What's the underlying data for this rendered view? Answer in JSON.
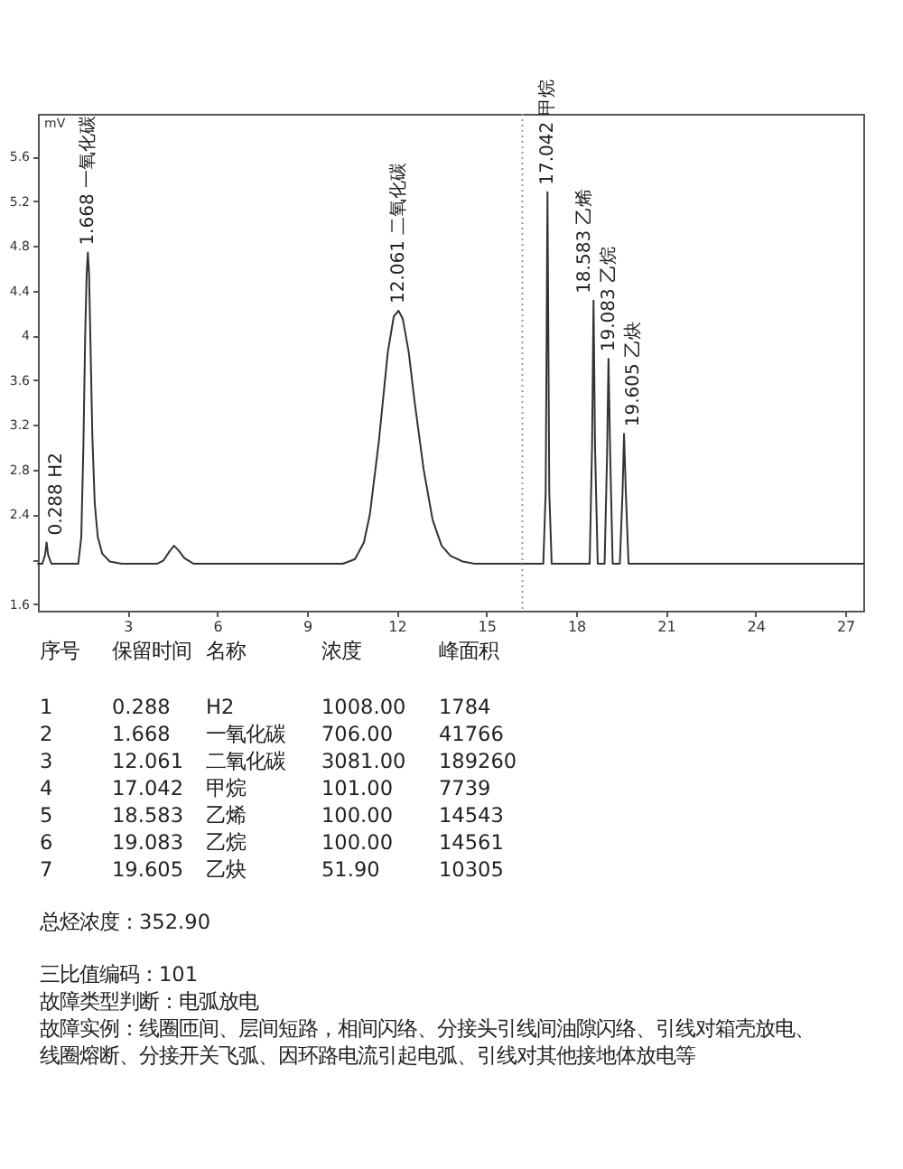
{
  "chart_data": {
    "type": "line",
    "ylabel": "mV",
    "x": [
      0,
      0.15,
      0.24,
      0.29,
      0.34,
      0.45,
      1.35,
      1.45,
      1.52,
      1.58,
      1.63,
      1.67,
      1.71,
      1.76,
      1.82,
      1.9,
      2.0,
      2.15,
      2.4,
      2.8,
      4.0,
      4.2,
      4.4,
      4.55,
      4.7,
      4.9,
      5.2,
      10.2,
      10.6,
      10.9,
      11.1,
      11.4,
      11.7,
      11.9,
      12.06,
      12.2,
      12.4,
      12.6,
      12.9,
      13.2,
      13.5,
      13.8,
      14.2,
      14.6,
      16.9,
      16.98,
      17.04,
      17.1,
      17.18,
      18.45,
      18.53,
      18.58,
      18.63,
      18.72,
      18.95,
      19.03,
      19.08,
      19.14,
      19.22,
      19.46,
      19.55,
      19.6,
      19.66,
      19.75,
      27.6
    ],
    "series": [
      {
        "color": "#333333",
        "values": [
          1.96,
          1.96,
          2.04,
          2.15,
          2.04,
          1.96,
          1.96,
          2.2,
          3.0,
          4.0,
          4.55,
          4.74,
          4.55,
          3.9,
          3.1,
          2.5,
          2.2,
          2.05,
          1.98,
          1.96,
          1.96,
          1.99,
          2.07,
          2.12,
          2.08,
          2.01,
          1.96,
          1.96,
          2.0,
          2.15,
          2.4,
          3.05,
          3.85,
          4.17,
          4.22,
          4.15,
          3.85,
          3.4,
          2.8,
          2.35,
          2.12,
          2.03,
          1.98,
          1.96,
          1.96,
          2.6,
          5.28,
          2.6,
          1.96,
          1.96,
          3.0,
          4.31,
          3.0,
          1.96,
          1.96,
          2.9,
          3.79,
          2.9,
          1.96,
          1.96,
          2.6,
          3.12,
          2.6,
          1.96,
          1.96
        ]
      }
    ],
    "xlim": [
      0,
      27.6
    ],
    "xticks": [
      3,
      6,
      9,
      12,
      15,
      18,
      21,
      24,
      27
    ],
    "ylim": [
      1.54,
      5.98
    ],
    "yticks": [
      5.6,
      5.2,
      4.8,
      4.4,
      4,
      3.6,
      3.2,
      2.8,
      2.4,
      {
        "value": 2,
        "label": null
      },
      1.6
    ],
    "grid": false,
    "marker": "none",
    "line_style": "solid",
    "ref_lines": [
      {
        "axis": "x",
        "value": 16.2,
        "line_style": "dotted",
        "color": "#9a9a9a"
      }
    ],
    "annotations": [
      {
        "text": "0.288 H2",
        "x": 0.29,
        "y": 2.15
      },
      {
        "text": "1.668 一氧化碳",
        "x": 1.67,
        "y": 4.74
      },
      {
        "text": "12.061 二氧化碳",
        "x": 12.06,
        "y": 4.22
      },
      {
        "text": "17.042 甲烷",
        "x": 17.04,
        "y": 5.28
      },
      {
        "text": "18.583 乙烯",
        "x": 18.58,
        "y": 4.31
      },
      {
        "text": "19.083 乙烷",
        "x": 19.08,
        "y": 3.79
      },
      {
        "text": "19.605 乙炔",
        "x": 19.6,
        "y": 3.12
      },
      "序号  保留时间  名称  浓度  峰面积",
      "1  0.288  H2  1008.00  1784",
      "2  1.668  一氧化碳  706.00  41766",
      "3  12.061  二氧化碳  3081.00  189260",
      "4  17.042  甲烷  101.00  7739",
      "5  18.583  乙烯  100.00  14543",
      "6  19.083  乙烷  100.00  14561",
      "7  19.605  乙炔  51.90  10305",
      "总烃浓度：352.90",
      "三比值编码：101",
      "故障类型判断：电弧放电",
      "故障实例：线圈匝间、层间短路，相间闪络、分接头引线间油隙闪络、引线对箱壳放电、",
      "线圈熔断、分接开关飞弧、因环路电流引起电弧、引线对其他接地体放电等"
    ]
  }
}
